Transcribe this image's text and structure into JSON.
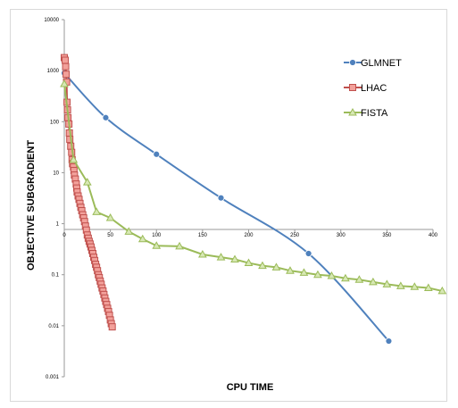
{
  "chart_data": {
    "type": "line",
    "title": "",
    "xlabel": "CPU TIME",
    "ylabel": "OBJECTIVE SUBGRADIENT",
    "xlim": [
      0,
      400
    ],
    "ylim": [
      0.001,
      10000
    ],
    "y_scale": "log",
    "x_ticks": [
      "0",
      "50",
      "100",
      "150",
      "200",
      "250",
      "300",
      "350",
      "400"
    ],
    "y_ticks": [
      "0.001",
      "0.01",
      "0.1",
      "1",
      "10",
      "100",
      "1000",
      "10000"
    ],
    "grid": false,
    "legend_position": "top-right",
    "series": [
      {
        "name": "GLMNET",
        "color": "#4f81bd",
        "marker": "diamond",
        "x": [
          0,
          45,
          100,
          170,
          265,
          352
        ],
        "y": [
          900,
          120,
          23,
          3.2,
          0.26,
          0.005
        ]
      },
      {
        "name": "LHAC",
        "color": "#c0504d",
        "marker": "square",
        "x": [
          0,
          1,
          1.5,
          2,
          2.5,
          3,
          3.5,
          4,
          5,
          5.5,
          6,
          7,
          8,
          8.5,
          9,
          10,
          10.5,
          11,
          12,
          13,
          13.5,
          14,
          15,
          16,
          17,
          18,
          19,
          20,
          21,
          22,
          23,
          24,
          25,
          26,
          27,
          28,
          29,
          30,
          31,
          32,
          33,
          34,
          35,
          36,
          37,
          38,
          39,
          40,
          41,
          42,
          43,
          44,
          45,
          46,
          47,
          48,
          49,
          50,
          51,
          52
        ],
        "y": [
          1800,
          1600,
          1200,
          850,
          600,
          240,
          170,
          120,
          90,
          60,
          45,
          33,
          25,
          18,
          15,
          13,
          11,
          9,
          7.5,
          6,
          5,
          4.2,
          3.5,
          3,
          2.5,
          2.1,
          1.8,
          1.5,
          1.3,
          1.1,
          0.9,
          0.75,
          0.6,
          0.52,
          0.45,
          0.4,
          0.35,
          0.3,
          0.26,
          0.22,
          0.19,
          0.16,
          0.14,
          0.12,
          0.1,
          0.088,
          0.075,
          0.065,
          0.055,
          0.048,
          0.041,
          0.035,
          0.03,
          0.026,
          0.022,
          0.019,
          0.016,
          0.013,
          0.011,
          0.0095
        ]
      },
      {
        "name": "FISTA",
        "color": "#9bbb59",
        "marker": "triangle",
        "x": [
          0,
          10,
          25,
          35,
          50,
          70,
          85,
          100,
          125,
          150,
          170,
          185,
          200,
          215,
          230,
          245,
          260,
          275,
          290,
          305,
          320,
          335,
          350,
          365,
          380,
          395,
          410
        ],
        "y": [
          550,
          18,
          6.5,
          1.7,
          1.3,
          0.7,
          0.5,
          0.37,
          0.36,
          0.25,
          0.22,
          0.2,
          0.17,
          0.15,
          0.14,
          0.12,
          0.11,
          0.1,
          0.095,
          0.085,
          0.08,
          0.072,
          0.065,
          0.06,
          0.058,
          0.055,
          0.048
        ]
      }
    ]
  }
}
